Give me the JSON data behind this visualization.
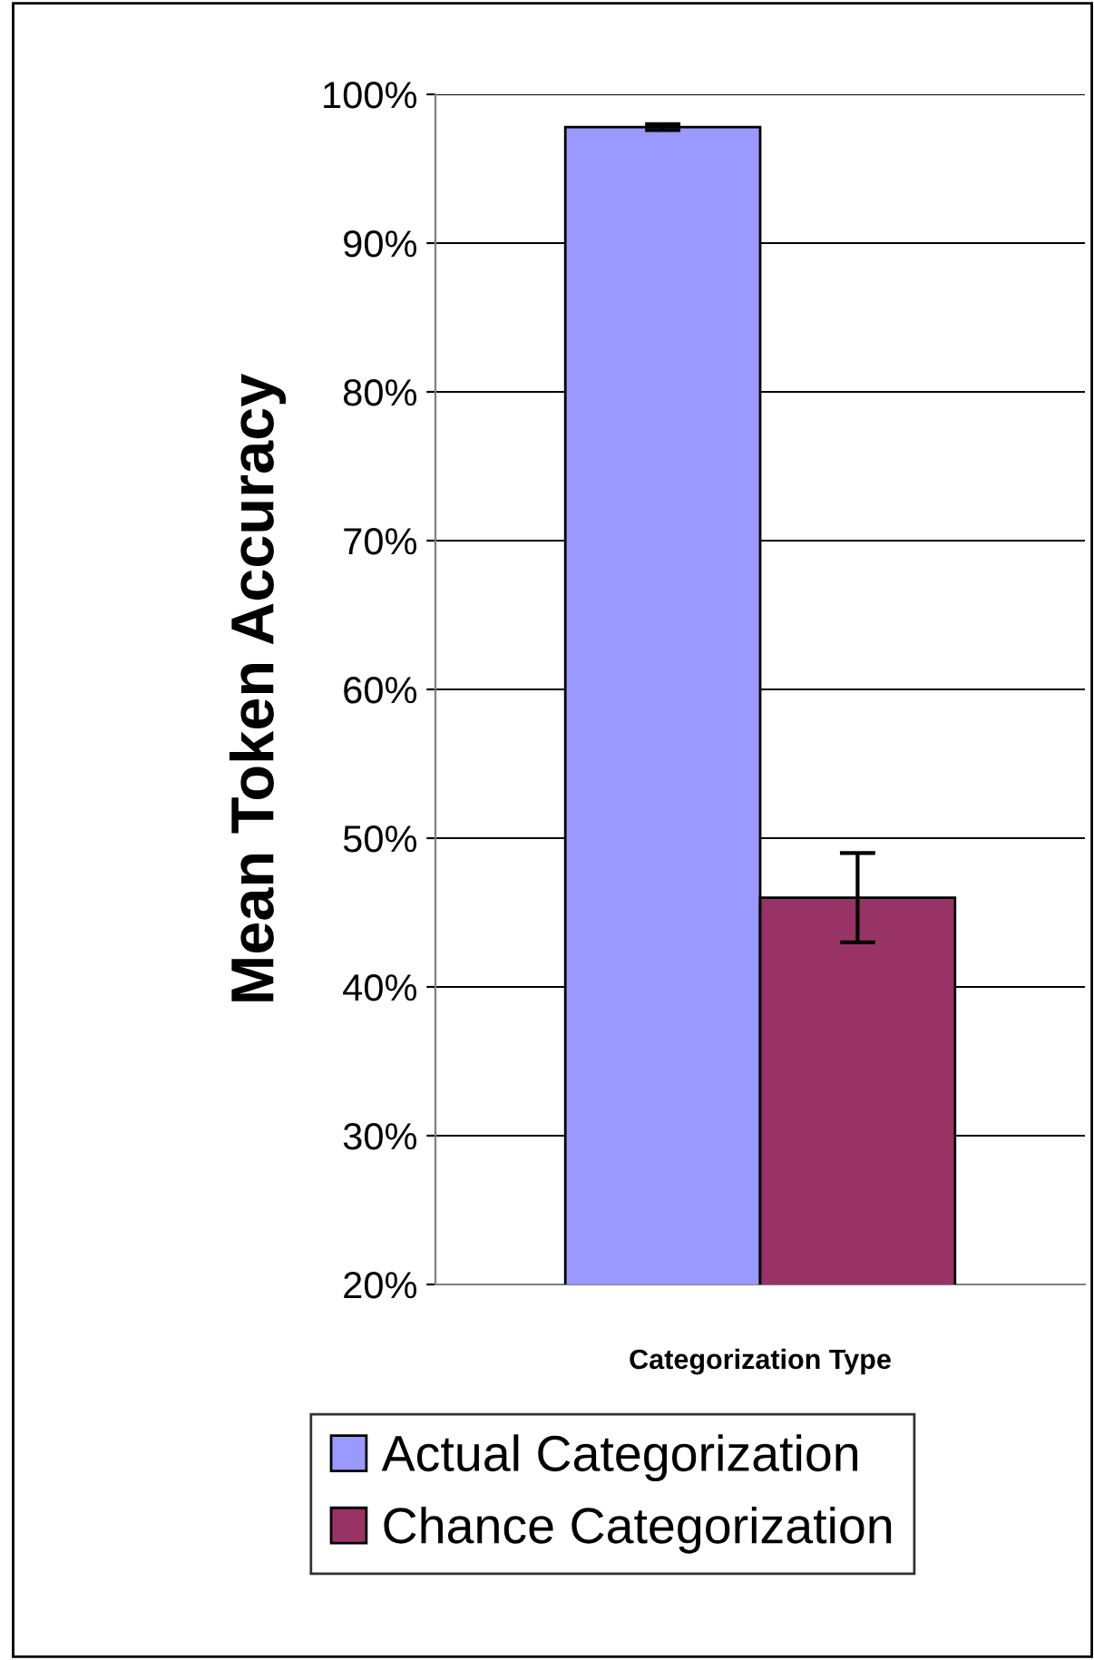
{
  "chart_data": {
    "type": "bar",
    "xlabel": "Categorization Type",
    "ylabel": "Mean Token Accuracy",
    "categories": [
      null
    ],
    "series": [
      {
        "name": "Actual Categorization",
        "color": "#9999ff",
        "values": [
          97.8
        ],
        "errors": [
          0.2
        ]
      },
      {
        "name": "Chance Categorization",
        "color": "#993366",
        "values": [
          46
        ],
        "errors": [
          3
        ]
      }
    ],
    "ylim": [
      20,
      100
    ],
    "yticks": [
      {
        "value": 20,
        "label": "20%"
      },
      {
        "value": 30,
        "label": "30%"
      },
      {
        "value": 40,
        "label": "40%"
      },
      {
        "value": 50,
        "label": "50%"
      },
      {
        "value": 60,
        "label": "60%"
      },
      {
        "value": 70,
        "label": "70%"
      },
      {
        "value": 80,
        "label": "80%"
      },
      {
        "value": 90,
        "label": "90%"
      },
      {
        "value": 100,
        "label": "100%"
      }
    ],
    "grid": "y",
    "legend": "bottom"
  }
}
